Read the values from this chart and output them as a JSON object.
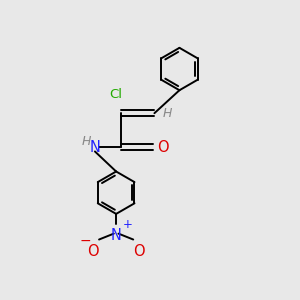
{
  "background_color": "#e8e8e8",
  "bond_color": "#000000",
  "figsize": [
    3.0,
    3.0
  ],
  "dpi": 100,
  "colors": {
    "Cl": "#22aa00",
    "H": "#888888",
    "N": "#2222ff",
    "O": "#dd0000",
    "C": "#000000"
  },
  "lw": 1.4,
  "ring_r": 0.72
}
